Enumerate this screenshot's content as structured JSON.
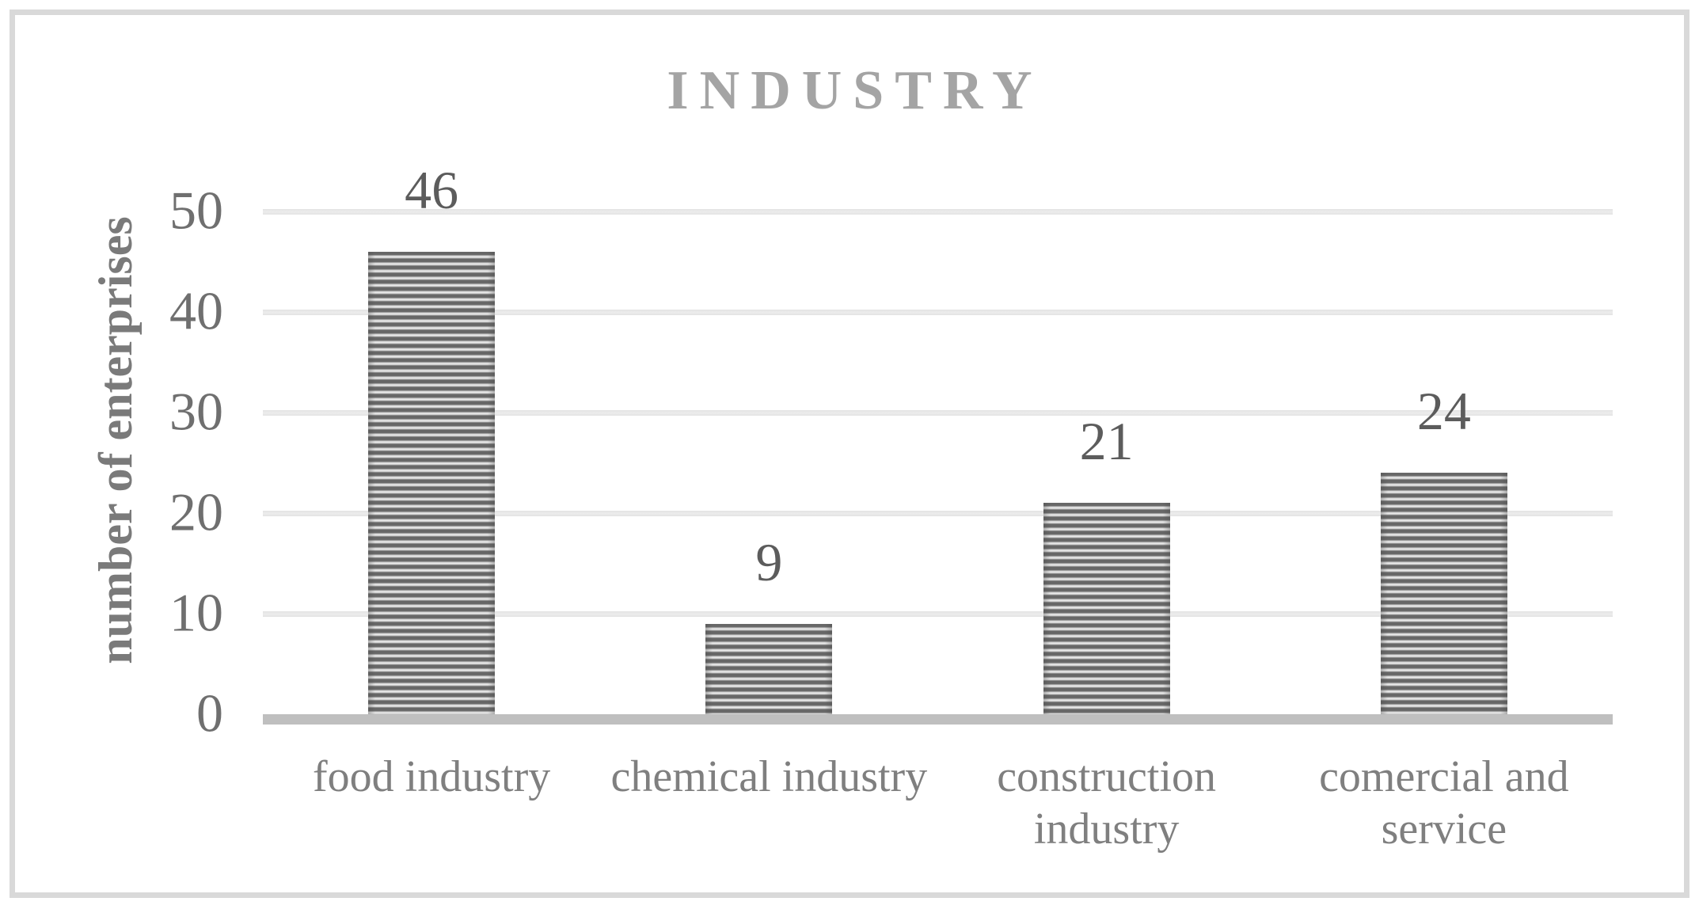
{
  "chart_data": {
    "type": "bar",
    "title": "INDUSTRY",
    "ylabel": "number of enterprises",
    "xlabel": "",
    "categories": [
      "food industry",
      "chemical industry",
      "construction industry",
      "comercial and service"
    ],
    "values": [
      46,
      9,
      21,
      24
    ],
    "data_labels": [
      "46",
      "9",
      "21",
      "24"
    ],
    "yticks": [
      0,
      10,
      20,
      30,
      40,
      50
    ],
    "ylim": [
      0,
      50
    ],
    "grid": true,
    "legend": false,
    "bar_pattern": "horizontal-stripes",
    "colors": {
      "background": "#ffffff",
      "frame_border": "#d9d9d9",
      "title": "#a4a4a4",
      "y_axis_title": "#7a7a7a",
      "tick_label": "#6f6f6f",
      "category_label": "#7f7f7f",
      "data_label": "#5c5c5c",
      "gridline": "#e3e3e3",
      "axis_line": "#bfbfbf",
      "bar_stripe_dark": "#676767",
      "bar_stripe_light": "#efefef"
    }
  }
}
